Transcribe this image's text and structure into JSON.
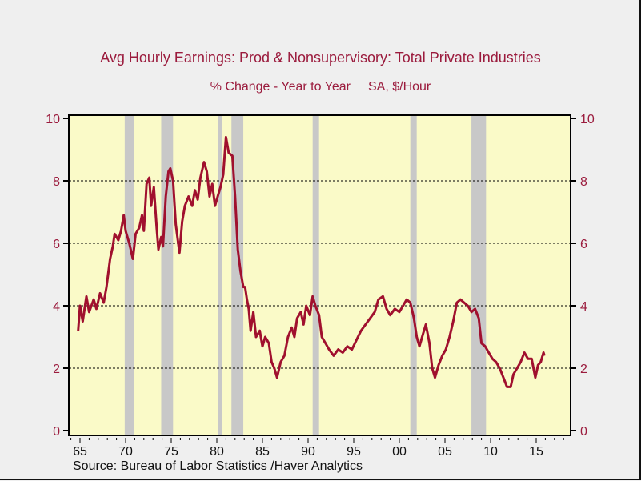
{
  "chart_data": {
    "type": "line",
    "title": "Avg Hourly Earnings: Prod & Nonsupervisory: Total Private Industries",
    "subtitle_left": "% Change - Year to Year",
    "subtitle_right": "SA, $/Hour",
    "source": "Source:  Bureau of Labor Statistics /Haver Analytics",
    "xlim": [
      1964,
      2018.3
    ],
    "ylim": [
      0,
      10
    ],
    "y_ticks": [
      0,
      2,
      4,
      6,
      8,
      10
    ],
    "y_tick_labels": [
      "0",
      "2",
      "4",
      "6",
      "8",
      "10"
    ],
    "x_ticks": [
      1965,
      1970,
      1975,
      1980,
      1985,
      1990,
      1995,
      2000,
      2005,
      2010,
      2015
    ],
    "x_tick_labels": [
      "65",
      "70",
      "75",
      "80",
      "85",
      "90",
      "95",
      "00",
      "05",
      "10",
      "15"
    ],
    "gridlines": "horizontal dashed",
    "recessions": [
      [
        1969.9,
        1970.9
      ],
      [
        1973.9,
        1975.2
      ],
      [
        1980.1,
        1980.6
      ],
      [
        1981.6,
        1982.9
      ],
      [
        1990.5,
        1991.2
      ],
      [
        2001.2,
        2001.9
      ],
      [
        2007.9,
        2009.5
      ]
    ],
    "series": [
      {
        "name": "Avg Hourly Earnings % Change Y/Y",
        "x": [
          1964.8,
          1965.0,
          1965.3,
          1965.7,
          1966.0,
          1966.5,
          1966.8,
          1967.2,
          1967.6,
          1967.9,
          1968.3,
          1968.6,
          1968.8,
          1969.2,
          1969.5,
          1969.8,
          1970.0,
          1970.4,
          1970.8,
          1971.1,
          1971.5,
          1971.8,
          1972.0,
          1972.3,
          1972.6,
          1972.8,
          1973.1,
          1973.4,
          1973.6,
          1973.9,
          1974.1,
          1974.4,
          1974.7,
          1974.9,
          1975.2,
          1975.5,
          1975.9,
          1976.2,
          1976.5,
          1976.9,
          1977.3,
          1977.6,
          1977.9,
          1978.2,
          1978.6,
          1978.9,
          1979.2,
          1979.5,
          1979.8,
          1980.1,
          1980.4,
          1980.7,
          1981.0,
          1981.3,
          1981.7,
          1982.0,
          1982.3,
          1982.6,
          1982.9,
          1983.1,
          1983.3,
          1983.5,
          1983.7,
          1984.0,
          1984.3,
          1984.7,
          1985.0,
          1985.3,
          1985.7,
          1986.0,
          1986.3,
          1986.6,
          1987.0,
          1987.4,
          1987.8,
          1988.2,
          1988.5,
          1988.8,
          1989.2,
          1989.5,
          1989.8,
          1990.2,
          1990.5,
          1990.8,
          1991.2,
          1991.5,
          1991.9,
          1992.3,
          1992.8,
          1993.3,
          1993.8,
          1994.3,
          1994.8,
          1995.3,
          1995.8,
          1996.3,
          1996.8,
          1997.3,
          1997.7,
          1998.2,
          1998.6,
          1999.0,
          1999.5,
          2000.0,
          2000.4,
          2000.8,
          2001.2,
          2001.6,
          2001.9,
          2002.2,
          2002.6,
          2002.9,
          2003.3,
          2003.6,
          2003.9,
          2004.3,
          2004.7,
          2005.1,
          2005.5,
          2005.9,
          2006.3,
          2006.7,
          2007.1,
          2007.5,
          2007.9,
          2008.3,
          2008.7,
          2009.0,
          2009.4,
          2009.8,
          2010.2,
          2010.6,
          2011.0,
          2011.4,
          2011.8,
          2012.2,
          2012.5,
          2012.9,
          2013.3,
          2013.7,
          2014.1,
          2014.5,
          2014.9,
          2015.2,
          2015.5,
          2015.8,
          2015.9
        ],
        "values": [
          3.2,
          4.0,
          3.5,
          4.3,
          3.8,
          4.2,
          3.9,
          4.4,
          4.1,
          4.6,
          5.5,
          5.9,
          6.3,
          6.1,
          6.4,
          6.9,
          6.4,
          6.0,
          5.5,
          6.3,
          6.5,
          6.9,
          6.4,
          7.9,
          8.1,
          7.2,
          7.8,
          6.5,
          5.8,
          6.2,
          5.9,
          7.5,
          8.3,
          8.4,
          8.0,
          6.6,
          5.7,
          6.7,
          7.2,
          7.5,
          7.2,
          7.7,
          7.4,
          8.1,
          8.6,
          8.3,
          7.5,
          7.9,
          7.2,
          7.5,
          7.8,
          8.2,
          9.4,
          8.9,
          8.8,
          7.5,
          5.8,
          5.1,
          4.6,
          4.6,
          4.2,
          3.9,
          3.2,
          3.8,
          3.0,
          3.2,
          2.7,
          3.0,
          2.8,
          2.2,
          2.0,
          1.7,
          2.2,
          2.4,
          3.0,
          3.3,
          3.0,
          3.6,
          3.8,
          3.4,
          4.0,
          3.7,
          4.3,
          4.0,
          3.7,
          3.0,
          2.8,
          2.6,
          2.4,
          2.6,
          2.5,
          2.7,
          2.6,
          2.9,
          3.2,
          3.4,
          3.6,
          3.8,
          4.2,
          4.3,
          3.9,
          3.7,
          3.9,
          3.8,
          4.0,
          4.2,
          4.1,
          3.6,
          3.0,
          2.7,
          3.1,
          3.4,
          2.8,
          2.0,
          1.7,
          2.1,
          2.4,
          2.6,
          3.0,
          3.5,
          4.1,
          4.2,
          4.1,
          4.0,
          3.8,
          3.9,
          3.6,
          2.8,
          2.7,
          2.5,
          2.3,
          2.2,
          2.0,
          1.7,
          1.4,
          1.4,
          1.8,
          2.0,
          2.2,
          2.5,
          2.3,
          2.3,
          1.7,
          2.1,
          2.2,
          2.5,
          2.4
        ]
      }
    ],
    "colors": {
      "line": "#a0102e",
      "plot_bg": "#fafac8",
      "recession": "#c8c8c8",
      "axis_text": "#9b1b3d"
    }
  }
}
